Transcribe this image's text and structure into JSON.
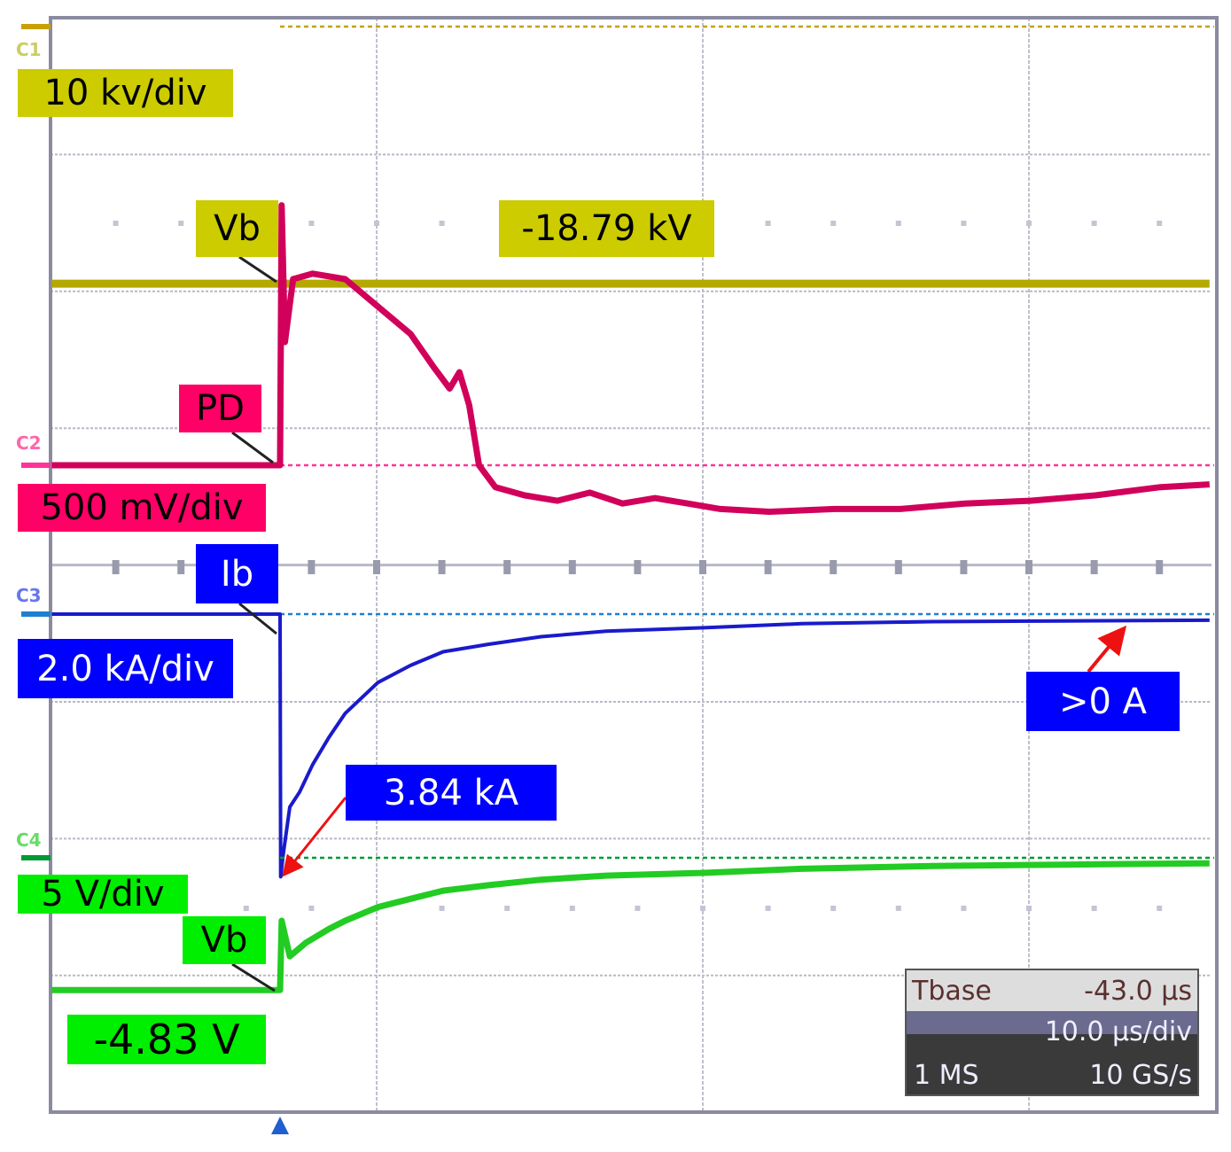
{
  "chart_data": {
    "type": "line",
    "title": "",
    "xlabel": "",
    "ylabel": "",
    "x_unit": "µs relative to trigger",
    "grid": true,
    "timebase": {
      "label": "Tbase",
      "offset": "-43.0 µs",
      "scale": "10.0 µs/div",
      "record": "1 MS",
      "sample_rate": "10 GS/s"
    },
    "channels": [
      {
        "marker": "C1",
        "name": "Vb",
        "scale_label": "10 kv/div",
        "unit": "kV",
        "per_div": 10,
        "color": "#b5a800",
        "ref_color": "#c8a000",
        "readout": "-18.79 kV",
        "x": [
          -7,
          28.5
        ],
        "y": [
          -18.79,
          -18.79
        ]
      },
      {
        "marker": "C2",
        "name": "PD",
        "scale_label": "500 mV/div",
        "unit": "V",
        "per_div": 0.5,
        "color": "#d1005a",
        "ref_color": "#ff3399",
        "x": [
          -7,
          0,
          0.05,
          0.15,
          0.4,
          1,
          2,
          3,
          4,
          4.7,
          5.2,
          5.5,
          5.8,
          6.1,
          6.6,
          7.5,
          8.5,
          9.5,
          10.5,
          11.5,
          12.5,
          13.5,
          15,
          17,
          19,
          21,
          23,
          25,
          27,
          28.5
        ],
        "y": [
          0,
          0,
          0.95,
          0.45,
          0.68,
          0.7,
          0.68,
          0.58,
          0.48,
          0.36,
          0.28,
          0.34,
          0.22,
          0.0,
          -0.08,
          -0.11,
          -0.13,
          -0.1,
          -0.14,
          -0.12,
          -0.14,
          -0.16,
          -0.17,
          -0.16,
          -0.16,
          -0.14,
          -0.13,
          -0.11,
          -0.08,
          -0.07
        ]
      },
      {
        "marker": "C3",
        "name": "Ib",
        "scale_label": "2.0 kA/div",
        "unit": "kA",
        "per_div": 2.0,
        "color": "#1a1acc",
        "ref_color": "#1f7fd0",
        "readout": "3.84 kA",
        "readout2": ">0 A",
        "x": [
          -7,
          0,
          0.02,
          0.1,
          0.3,
          0.6,
          1,
          1.5,
          2,
          3,
          4,
          5,
          6.4,
          8,
          10,
          13,
          16,
          20,
          24,
          28.5
        ],
        "y": [
          0,
          0,
          -3.84,
          -3.5,
          -2.82,
          -2.6,
          -2.2,
          -1.8,
          -1.45,
          -1.0,
          -0.75,
          -0.55,
          -0.44,
          -0.33,
          -0.25,
          -0.2,
          -0.14,
          -0.11,
          -0.1,
          -0.09
        ]
      },
      {
        "marker": "C4",
        "name": "Vb",
        "scale_label": "5 V/div",
        "unit": "V",
        "per_div": 5,
        "color": "#22cc22",
        "ref_color": "#009933",
        "readout": "-4.83 V",
        "x": [
          -7,
          0,
          0.05,
          0.3,
          0.8,
          1.5,
          2,
          3,
          4,
          5,
          6.4,
          8,
          10,
          13,
          16,
          20,
          24,
          28.5
        ],
        "y": [
          -4.83,
          -4.83,
          -2.3,
          -3.6,
          -3.1,
          -2.6,
          -2.3,
          -1.8,
          -1.5,
          -1.2,
          -1.0,
          -0.8,
          -0.65,
          -0.55,
          -0.4,
          -0.3,
          -0.25,
          -0.2
        ]
      }
    ],
    "annotations": {
      "c1_label": "Vb",
      "c2_label": "PD",
      "c3_label": "Ib",
      "c4_label": "Vb"
    }
  }
}
